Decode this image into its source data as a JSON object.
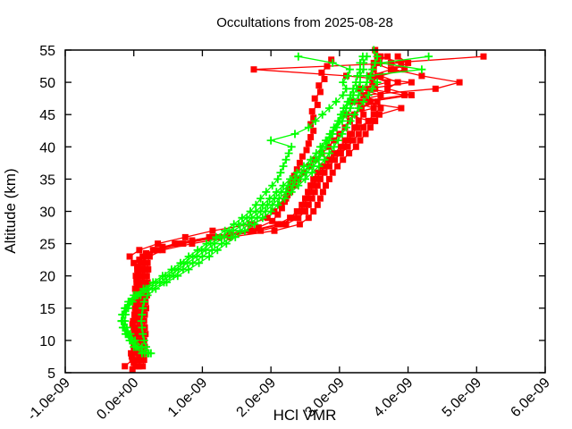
{
  "chart_data": {
    "type": "line",
    "title": "Occultations from 2025-08-28",
    "xlabel": "HCl VMR",
    "ylabel": "Altitude (km)",
    "xlim": [
      -1.0,
      6.0
    ],
    "x_value_scale": "1e-09",
    "ylim": [
      5,
      55
    ],
    "xtick_values": [
      -1,
      0,
      1,
      2,
      3,
      4,
      5,
      6
    ],
    "xtick_labels": [
      "-1.0e-09",
      "0.0e+00",
      "1.0e-09",
      "2.0e-09",
      "3.0e-09",
      "4.0e-09",
      "5.0e-09",
      "6.0e-09"
    ],
    "ytick_values": [
      5,
      10,
      15,
      20,
      25,
      30,
      35,
      40,
      45,
      50,
      55
    ],
    "ytick_labels": [
      "5",
      "10",
      "15",
      "20",
      "25",
      "30",
      "35",
      "40",
      "45",
      "50",
      "55"
    ],
    "grid": false,
    "legend": "none",
    "background": "#ffffff",
    "axis_color": "#000000",
    "series": [
      {
        "name": "occultation-profiles-red",
        "color": "#ff0000",
        "marker": "filled-square",
        "line": true,
        "profiles": [
          {
            "alt_start": 5.5,
            "alt_step": 1,
            "vmr": [
              -0.02,
              0.0,
              -0.03,
              0.01,
              0.02,
              0.0,
              0.01,
              -0.02,
              0.02,
              0.03,
              0.02,
              0.04,
              0.03,
              0.05,
              0.04,
              0.06,
              0.05,
              0.08,
              0.18,
              0.42,
              0.85,
              1.4,
              1.82,
              2.02,
              2.1,
              2.16,
              2.2,
              2.24,
              2.27,
              2.3,
              2.34,
              2.38,
              2.42,
              2.46,
              2.52,
              2.55,
              2.58,
              2.62,
              2.58,
              2.62,
              2.6,
              2.68,
              2.64,
              2.72,
              2.7,
              2.78,
              2.74,
              2.82,
              2.88
            ]
          },
          {
            "alt_start": 6,
            "alt_step": 1,
            "vmr": [
              0.03,
              0.05,
              0.04,
              0.06,
              0.05,
              0.07,
              0.06,
              0.05,
              0.06,
              0.08,
              0.07,
              0.09,
              0.08,
              0.1,
              0.09,
              0.11,
              0.1,
              0.13,
              0.28,
              0.6,
              1.1,
              1.7,
              2.1,
              2.28,
              2.38,
              2.45,
              2.5,
              2.54,
              2.58,
              2.62,
              2.68,
              2.75,
              2.83,
              2.92,
              3.02,
              3.08,
              3.15,
              3.22,
              3.28,
              3.35,
              3.32,
              3.45,
              3.4,
              3.52,
              3.48,
              3.55,
              3.5,
              3.58,
              3.55,
              3.52
            ]
          },
          {
            "alt_start": 6,
            "alt_step": 1,
            "vmr": [
              0.08,
              0.1,
              0.09,
              0.11,
              0.1,
              0.12,
              0.11,
              0.1,
              0.12,
              0.13,
              0.12,
              0.14,
              0.13,
              0.15,
              0.14,
              0.16,
              0.15,
              0.18,
              0.35,
              0.72,
              1.25,
              1.85,
              2.22,
              2.4,
              2.5,
              2.55,
              2.6,
              2.64,
              2.68,
              2.72,
              2.78,
              2.85,
              2.93,
              3.02,
              3.12,
              3.2,
              3.28,
              3.35,
              3.42,
              3.5,
              3.6,
              3.42,
              4.05,
              3.7,
              3.85,
              3.6,
              3.95,
              3.75,
              5.1
            ]
          },
          {
            "alt_start": 6,
            "alt_step": 1,
            "vmr": [
              0.13,
              0.15,
              0.14,
              0.16,
              0.15,
              0.17,
              0.16,
              0.15,
              0.16,
              0.18,
              0.17,
              0.19,
              0.18,
              0.2,
              0.19,
              0.21,
              0.2,
              0.23,
              0.42,
              0.85,
              1.4,
              2.05,
              2.42,
              2.55,
              2.62,
              2.68,
              2.72,
              2.76,
              2.8,
              2.85,
              2.9,
              2.97,
              3.05,
              3.14,
              3.24,
              3.3,
              3.38,
              3.45,
              3.52,
              3.58,
              3.9,
              3.3,
              3.95,
              3.42,
              4.05,
              3.1,
              1.75,
              3.9,
              3.6
            ]
          },
          {
            "alt_start": 6,
            "alt_step": 1,
            "vmr": [
              -0.13,
              -0.02,
              -0.04,
              0.0,
              -0.01,
              0.01,
              0.0,
              -0.01,
              0.01,
              0.02,
              0.01,
              0.03,
              0.02,
              0.04,
              0.03,
              0.05,
              0.0,
              -0.06,
              0.08,
              0.35,
              0.75,
              1.15,
              1.7,
              1.95,
              2.05,
              2.15,
              2.22,
              2.28,
              2.34,
              2.4,
              2.48,
              2.56,
              2.64,
              2.74,
              2.84,
              2.92,
              3.0,
              3.08,
              3.15,
              3.22,
              3.3,
              3.55,
              3.35,
              4.4,
              4.75,
              4.2,
              3.8,
              4.0,
              3.85
            ]
          },
          {
            "alt_start": 6,
            "alt_step": 1,
            "vmr": [
              0.06,
              0.08,
              0.07,
              0.09,
              0.08,
              0.1,
              0.09,
              0.08,
              0.09,
              0.11,
              0.1,
              0.12,
              0.11,
              0.13,
              0.12,
              0.14,
              0.13,
              0.16,
              0.3,
              0.65,
              1.15,
              1.75,
              2.15,
              2.32,
              2.42,
              2.48,
              2.53,
              2.57,
              2.61,
              2.66,
              2.72,
              2.79,
              2.87,
              2.96,
              3.06,
              3.12,
              3.18,
              3.26,
              3.45,
              3.1,
              3.5,
              3.2,
              3.6,
              3.3,
              3.7,
              3.45,
              3.75,
              3.5,
              3.7
            ]
          }
        ]
      },
      {
        "name": "occultation-profiles-green",
        "color": "#00ff00",
        "marker": "plus",
        "line": true,
        "profiles": [
          {
            "alt_start": 8,
            "alt_step": 1,
            "vmr": [
              0.2,
              0.06,
              -0.02,
              -0.08,
              -0.13,
              -0.16,
              -0.15,
              -0.11,
              -0.05,
              0.06,
              0.22,
              0.38,
              0.52,
              0.65,
              0.78,
              0.92,
              1.05,
              1.18,
              1.32,
              1.45,
              1.6,
              1.72,
              1.85,
              1.95,
              2.05,
              2.15,
              2.25,
              2.35,
              2.45,
              2.55,
              2.65,
              2.72,
              2.8,
              2.85,
              2.9,
              2.95,
              3.0,
              3.05,
              3.1,
              3.15,
              3.2,
              3.25,
              3.3,
              3.3,
              3.35,
              3.35,
              3.4
            ]
          },
          {
            "alt_start": 8,
            "alt_step": 1,
            "vmr": [
              0.12,
              0.0,
              -0.06,
              -0.12,
              -0.16,
              -0.18,
              -0.17,
              -0.13,
              -0.08,
              0.0,
              0.14,
              0.28,
              0.42,
              0.55,
              0.68,
              0.8,
              0.93,
              1.06,
              1.2,
              1.33,
              1.46,
              1.58,
              1.7,
              1.78,
              1.85,
              1.93,
              2.02,
              2.1,
              2.14,
              2.18,
              2.22,
              2.26,
              2.3,
              2.0,
              2.35,
              2.55,
              2.65,
              2.75,
              2.85,
              2.95,
              3.05,
              3.1,
              3.05,
              3.12,
              3.15,
              2.9,
              2.4
            ]
          },
          {
            "alt_start": 8,
            "alt_step": 1,
            "vmr": [
              0.22,
              0.18,
              0.15,
              0.13,
              0.12,
              0.11,
              0.12,
              0.13,
              0.15,
              0.2,
              0.32,
              0.48,
              0.64,
              0.8,
              0.95,
              1.1,
              1.22,
              1.35,
              1.48,
              1.62,
              1.76,
              1.88,
              2.0,
              2.1,
              2.2,
              2.3,
              2.4,
              2.5,
              2.6,
              2.7,
              2.78,
              2.85,
              2.92,
              2.98,
              3.04,
              3.1,
              3.16,
              3.22,
              3.28,
              3.35,
              3.42,
              3.48,
              3.55,
              3.4,
              4.2,
              3.6,
              4.3
            ]
          },
          {
            "alt_start": 8,
            "alt_step": 1,
            "vmr": [
              0.25,
              0.12,
              0.02,
              -0.05,
              -0.1,
              -0.13,
              -0.12,
              -0.08,
              -0.02,
              0.1,
              0.27,
              0.44,
              0.58,
              0.72,
              0.86,
              1.0,
              1.14,
              1.28,
              1.42,
              1.55,
              1.68,
              1.8,
              1.92,
              2.02,
              2.12,
              2.22,
              2.32,
              2.42,
              2.52,
              2.62,
              2.7,
              2.76,
              2.72,
              2.8,
              2.88,
              2.96,
              3.04,
              3.1,
              3.16,
              3.22,
              3.28,
              3.34,
              3.4,
              3.45,
              3.48,
              3.52,
              3.55,
              3.5
            ]
          },
          {
            "alt_start": 8,
            "alt_step": 1,
            "vmr": [
              0.16,
              0.03,
              -0.04,
              -0.1,
              -0.15,
              -0.17,
              -0.16,
              -0.12,
              -0.07,
              0.03,
              0.18,
              0.32,
              0.46,
              0.6,
              0.73,
              0.86,
              0.99,
              1.12,
              1.26,
              1.39,
              1.53,
              1.65,
              1.78,
              1.88,
              1.98,
              2.08,
              2.18,
              2.28,
              2.38,
              2.48,
              2.58,
              2.66,
              2.75,
              2.82,
              2.86,
              2.92,
              2.98,
              3.02,
              3.06,
              3.12,
              3.16,
              3.2,
              3.24,
              3.26,
              3.3,
              3.3,
              3.34
            ]
          }
        ]
      }
    ]
  }
}
